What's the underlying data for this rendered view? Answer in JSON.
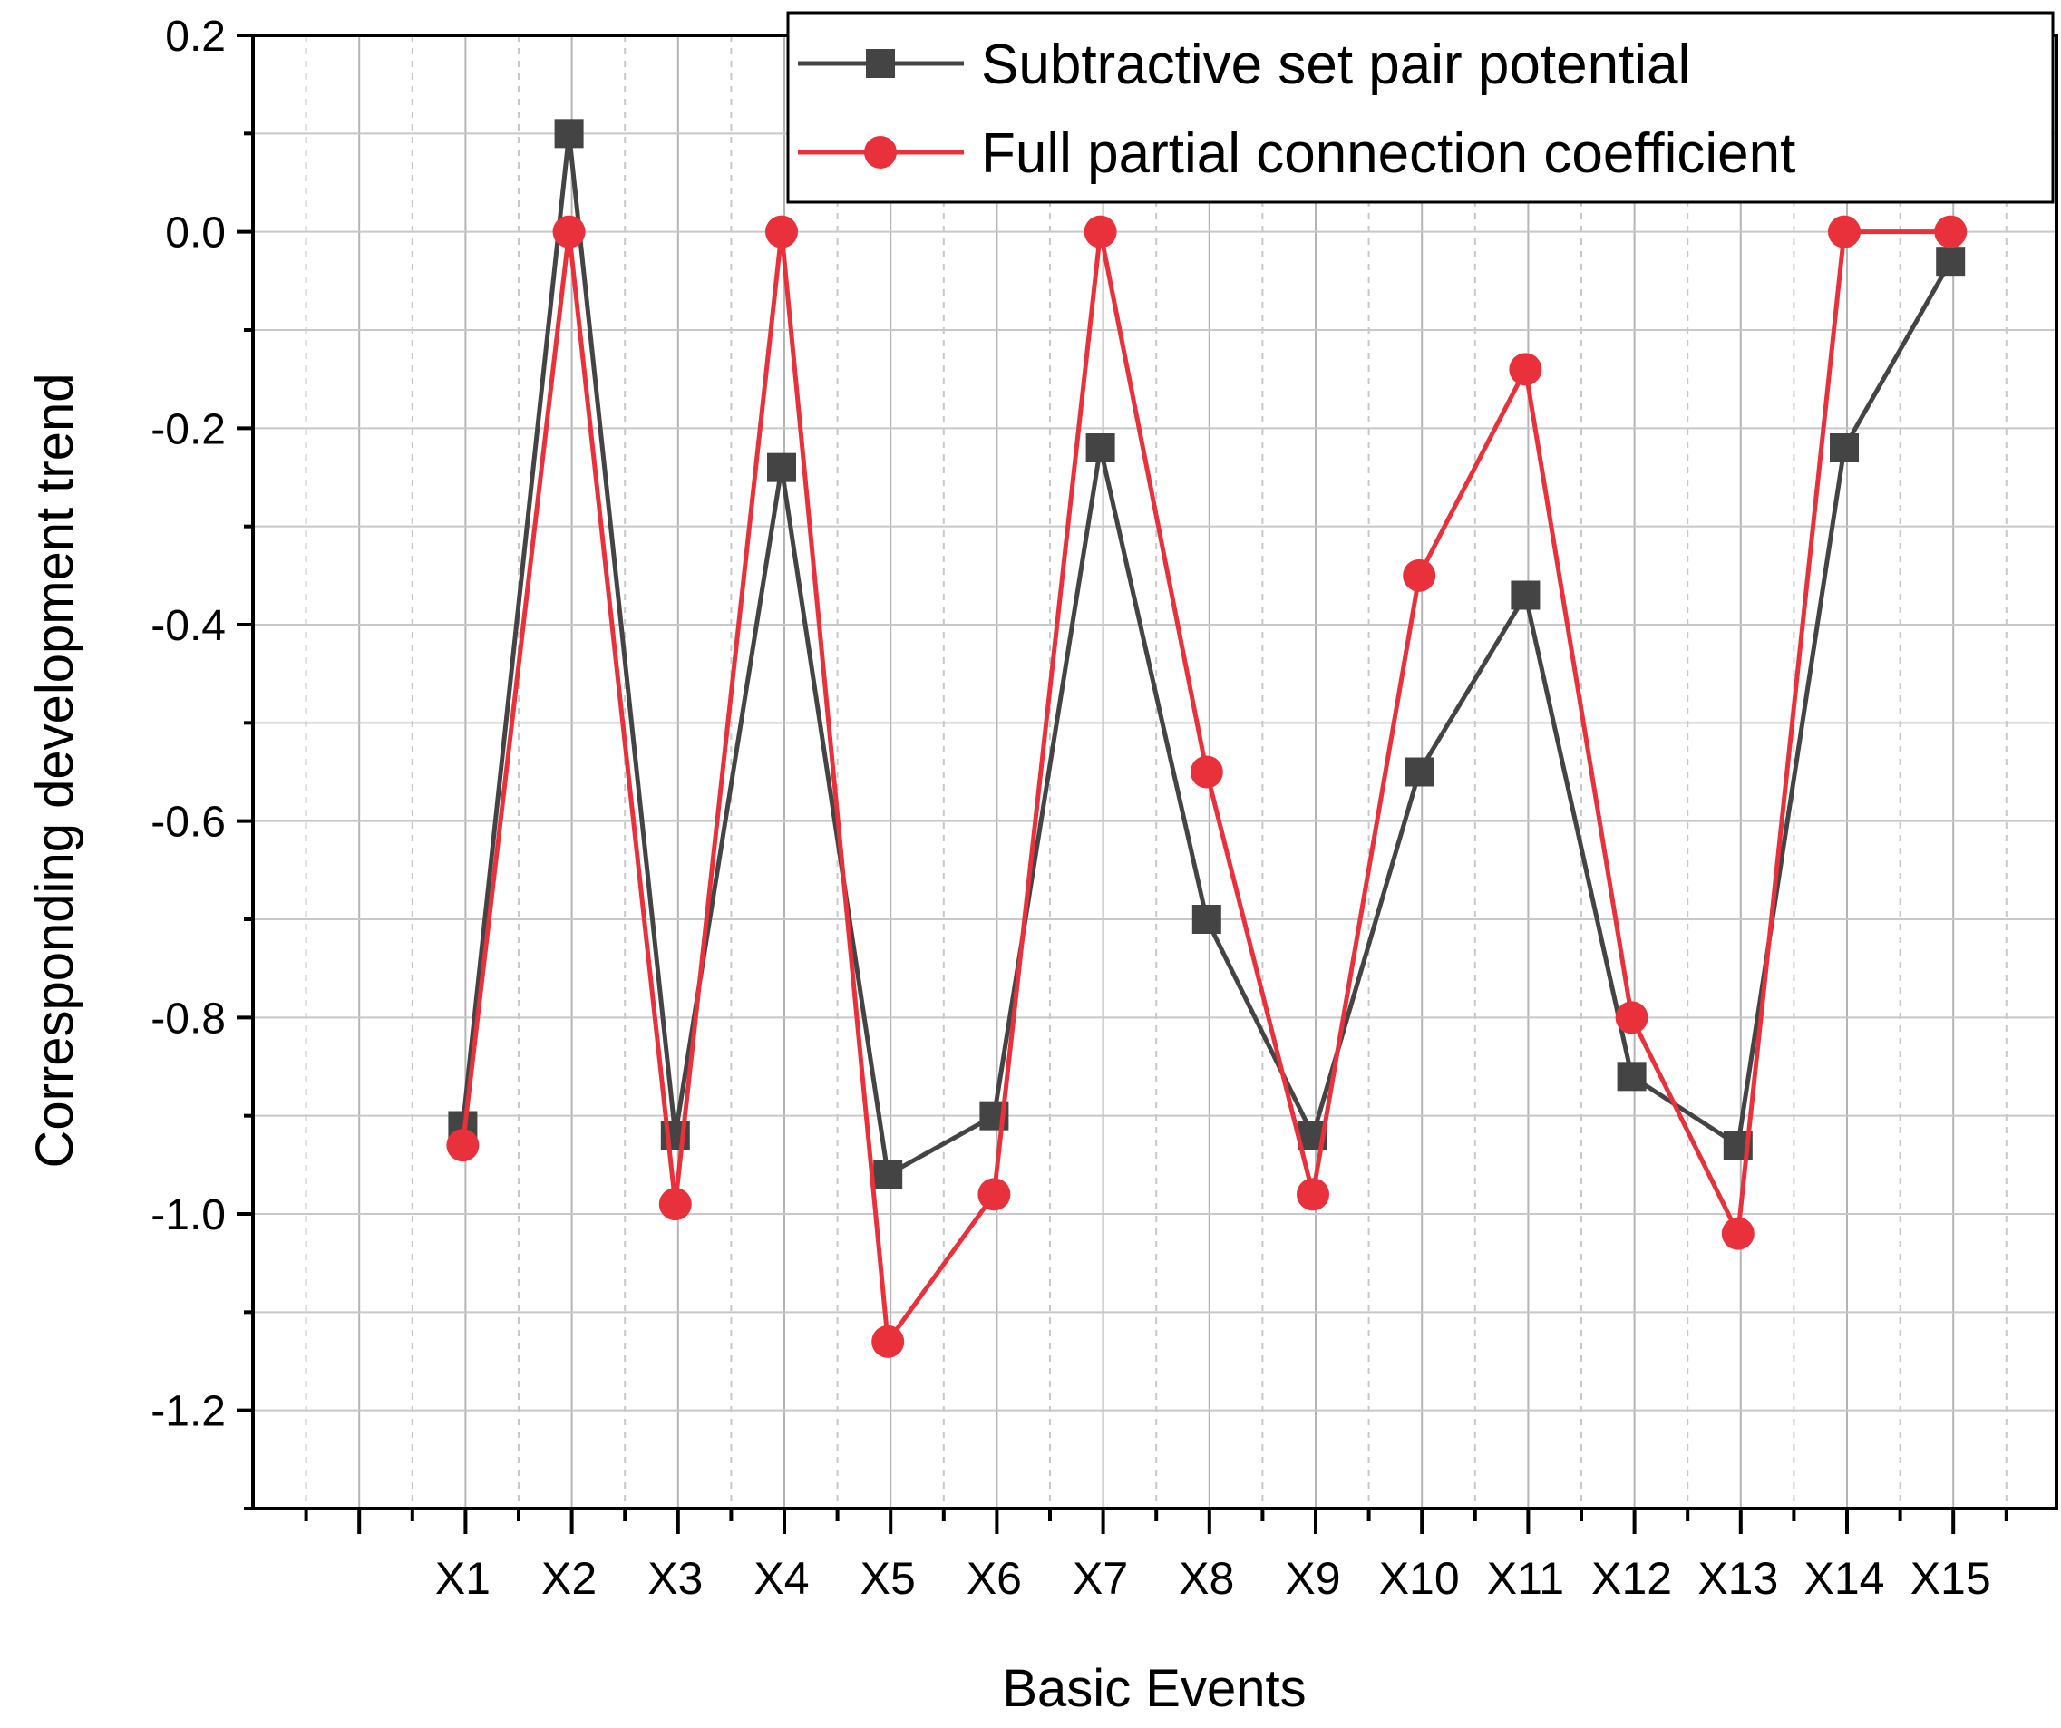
{
  "chart_data": {
    "type": "line",
    "title": "",
    "xlabel": "Basic Events",
    "ylabel": "Corresponding development trend",
    "categories": [
      "X1",
      "X2",
      "X3",
      "X4",
      "X5",
      "X6",
      "X7",
      "X8",
      "X9",
      "X10",
      "X11",
      "X12",
      "X13",
      "X14",
      "X15"
    ],
    "ylim": [
      -1.3,
      0.2
    ],
    "yticks": [
      0.2,
      0.0,
      -0.2,
      -0.4,
      -0.6,
      -0.8,
      -1.0,
      -1.2
    ],
    "ytick_labels": [
      "0.2",
      "0.0",
      "-0.2",
      "-0.4",
      "-0.6",
      "-0.8",
      "-1.0",
      "-1.2"
    ],
    "grid": true,
    "legend_position": "top-right",
    "series": [
      {
        "name": "Subtractive set pair potential",
        "color": "#444444",
        "marker": "square",
        "values": [
          -0.91,
          0.1,
          -0.92,
          -0.24,
          -0.96,
          -0.9,
          -0.22,
          -0.7,
          -0.92,
          -0.55,
          -0.37,
          -0.86,
          -0.93,
          -0.22,
          -0.03
        ]
      },
      {
        "name": "Full partial connection coefficient",
        "color": "#e8313a",
        "marker": "circle",
        "values": [
          -0.93,
          0.0,
          -0.99,
          0.0,
          -1.13,
          -0.98,
          0.0,
          -0.55,
          -0.98,
          -0.35,
          -0.14,
          -0.8,
          -1.02,
          0.0,
          0.0
        ]
      }
    ]
  }
}
